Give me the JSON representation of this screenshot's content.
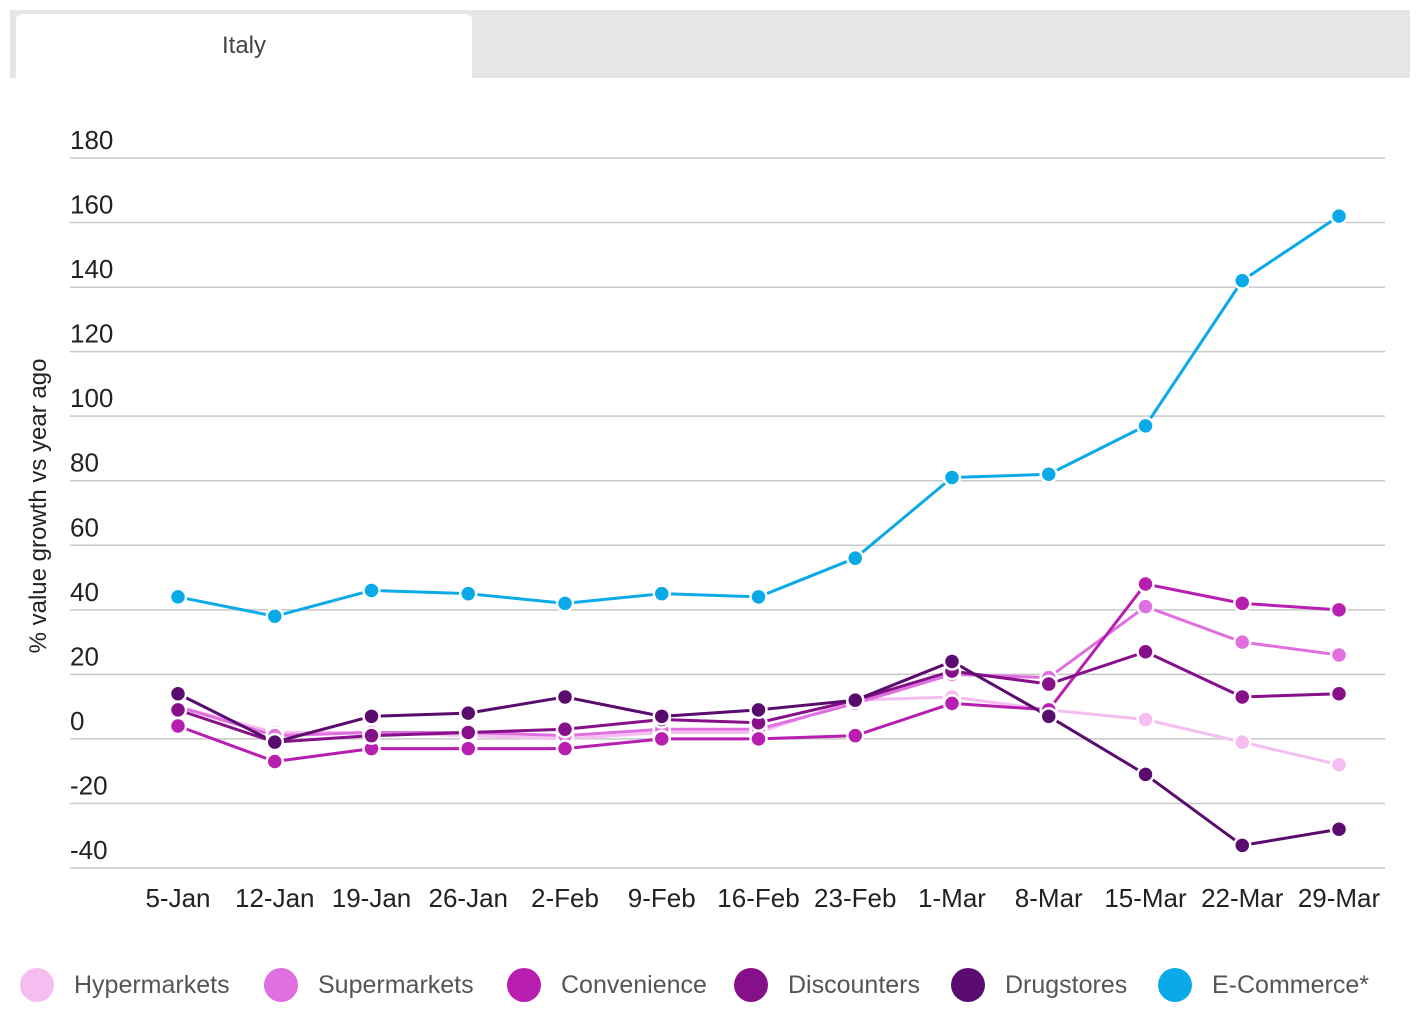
{
  "tabs": [
    {
      "label": "Italy"
    }
  ],
  "chart_data": {
    "type": "line",
    "ylabel": "% value growth vs year ago",
    "ylim": [
      -40,
      180
    ],
    "yticks": [
      180,
      160,
      140,
      120,
      100,
      80,
      60,
      40,
      20,
      0,
      -20,
      -40
    ],
    "grid": true,
    "legend_position": "bottom",
    "categories": [
      "5-Jan",
      "12-Jan",
      "19-Jan",
      "26-Jan",
      "2-Feb",
      "9-Feb",
      "16-Feb",
      "23-Feb",
      "1-Mar",
      "8-Mar",
      "15-Mar",
      "22-Mar",
      "29-Mar"
    ],
    "series": [
      {
        "name": "Hypermarkets",
        "color": "#f5bdf0",
        "values": [
          10,
          2,
          2,
          1,
          0,
          2,
          2,
          12,
          13,
          9,
          6,
          -1,
          -8
        ]
      },
      {
        "name": "Supermarkets",
        "color": "#e070e0",
        "values": [
          10,
          1,
          2,
          2,
          1,
          3,
          3,
          11,
          20,
          19,
          41,
          30,
          26
        ]
      },
      {
        "name": "Convenience",
        "color": "#b81fb0",
        "values": [
          4,
          -7,
          -3,
          -3,
          -3,
          0,
          0,
          1,
          11,
          9,
          48,
          42,
          40
        ]
      },
      {
        "name": "Discounters",
        "color": "#86108a",
        "values": [
          9,
          -1,
          1,
          2,
          3,
          6,
          5,
          12,
          21,
          17,
          27,
          13,
          14
        ]
      },
      {
        "name": "Drugstores",
        "color": "#5a0b6e",
        "values": [
          14,
          -1,
          7,
          8,
          13,
          7,
          9,
          12,
          24,
          7,
          -11,
          -33,
          -28
        ]
      },
      {
        "name": "E-Commerce*",
        "color": "#0aaae8",
        "values": [
          44,
          38,
          46,
          45,
          42,
          45,
          44,
          56,
          81,
          82,
          97,
          142,
          162
        ]
      }
    ]
  }
}
